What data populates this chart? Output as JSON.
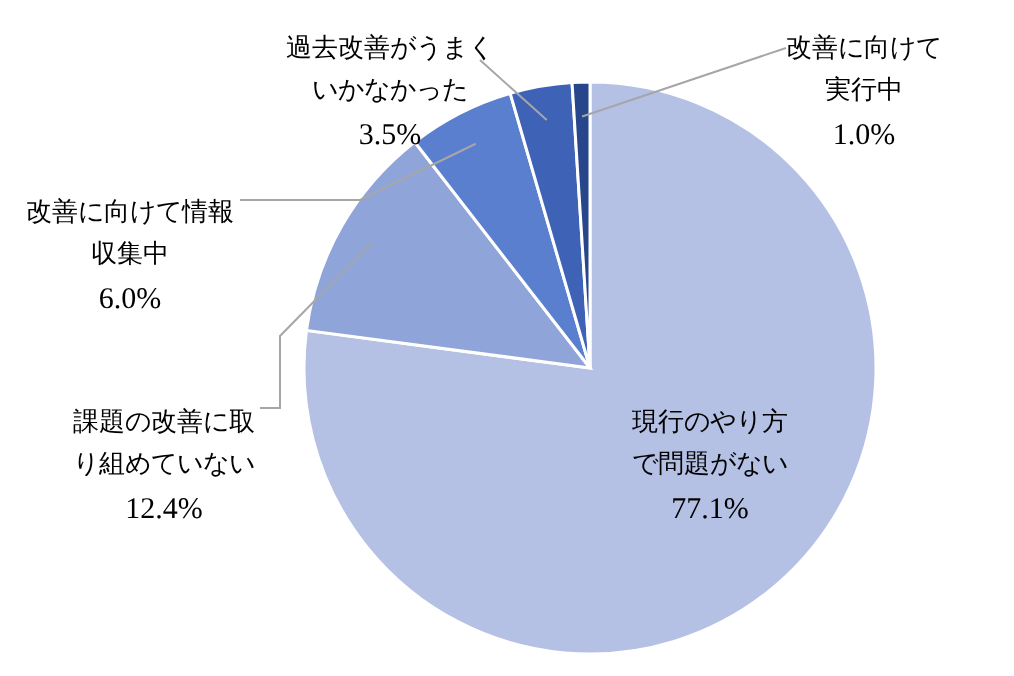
{
  "chart_data": {
    "type": "pie",
    "categories": [
      "現行のやり方で問題がない",
      "課題の改善に取り組めていない",
      "改善に向けて情報収集中",
      "過去改善がうまくいかなかった",
      "改善に向けて実行中"
    ],
    "values": [
      77.1,
      12.4,
      6.0,
      3.5,
      1.0
    ],
    "colors": [
      "#b4c0e4",
      "#8fa4d8",
      "#5b7fcf",
      "#3e62b5",
      "#27468c"
    ],
    "value_labels": [
      "77.1%",
      "12.4%",
      "6.0%",
      "3.5%",
      "1.0%"
    ]
  }
}
